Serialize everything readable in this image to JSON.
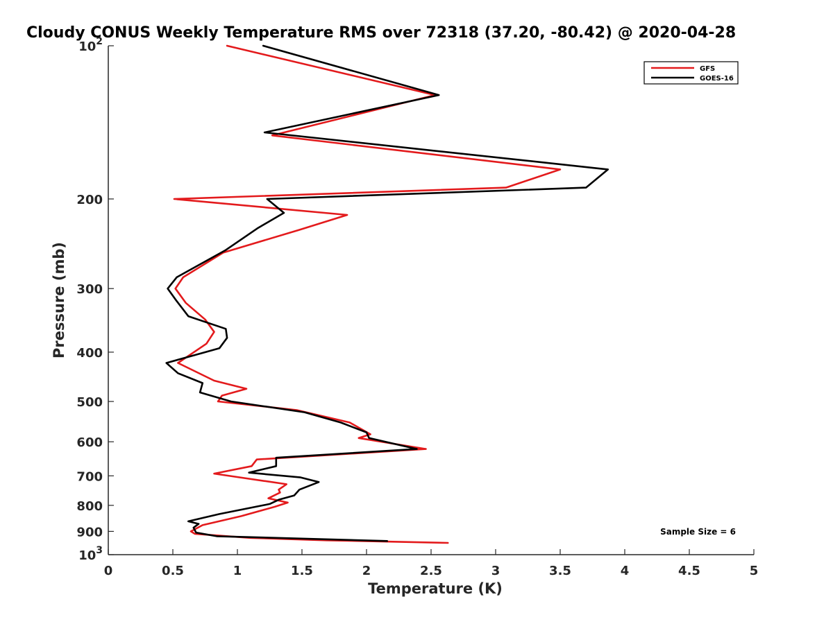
{
  "chart_data": {
    "type": "line",
    "title": "Cloudy CONUS Weekly Temperature RMS over 72318 (37.20, -80.42) @ 2020-04-28",
    "xlabel": "Temperature (K)",
    "ylabel": "Pressure (mb)",
    "xlim": [
      0,
      5
    ],
    "ylim": [
      100,
      1000
    ],
    "yscale": "log",
    "y_reversed": true,
    "grid": false,
    "x_ticks": [
      0,
      0.5,
      1,
      1.5,
      2,
      2.5,
      3,
      3.5,
      4,
      4.5,
      5
    ],
    "x_tick_labels": [
      "0",
      "0.5",
      "1",
      "1.5",
      "2",
      "2.5",
      "3",
      "3.5",
      "4",
      "4.5",
      "5"
    ],
    "y_ticks": [
      100,
      200,
      300,
      400,
      500,
      600,
      700,
      800,
      900,
      1000
    ],
    "y_tick_labels": [
      {
        "base": "10",
        "exp": "2"
      },
      {
        "base": "200",
        "exp": ""
      },
      {
        "base": "300",
        "exp": ""
      },
      {
        "base": "400",
        "exp": ""
      },
      {
        "base": "500",
        "exp": ""
      },
      {
        "base": "600",
        "exp": ""
      },
      {
        "base": "700",
        "exp": ""
      },
      {
        "base": "800",
        "exp": ""
      },
      {
        "base": "900",
        "exp": ""
      },
      {
        "base": "10",
        "exp": "3"
      }
    ],
    "legend_position": "top-right",
    "annotation": "Sample Size = 6",
    "series": [
      {
        "name": "GFS",
        "color": "#e31a1c",
        "points": [
          [
            0.92,
            100
          ],
          [
            2.53,
            125
          ],
          [
            1.27,
            150
          ],
          [
            3.5,
            175
          ],
          [
            3.08,
            190
          ],
          [
            0.51,
            200
          ],
          [
            1.85,
            215
          ],
          [
            1.48,
            230
          ],
          [
            0.89,
            255
          ],
          [
            0.58,
            285
          ],
          [
            0.52,
            300
          ],
          [
            0.6,
            320
          ],
          [
            0.75,
            345
          ],
          [
            0.82,
            365
          ],
          [
            0.76,
            385
          ],
          [
            0.54,
            420
          ],
          [
            0.82,
            455
          ],
          [
            1.07,
            472
          ],
          [
            0.88,
            487
          ],
          [
            0.85,
            500
          ],
          [
            1.46,
            520
          ],
          [
            1.87,
            550
          ],
          [
            2.03,
            580
          ],
          [
            1.94,
            590
          ],
          [
            2.46,
            620
          ],
          [
            1.15,
            650
          ],
          [
            1.11,
            670
          ],
          [
            0.82,
            693
          ],
          [
            1.38,
            727
          ],
          [
            1.32,
            745
          ],
          [
            1.33,
            755
          ],
          [
            1.24,
            775
          ],
          [
            1.39,
            790
          ],
          [
            1.29,
            805
          ],
          [
            1.03,
            840
          ],
          [
            0.73,
            875
          ],
          [
            0.64,
            900
          ],
          [
            0.67,
            910
          ],
          [
            1.1,
            927
          ],
          [
            1.69,
            937
          ],
          [
            2.63,
            948
          ]
        ]
      },
      {
        "name": "GOES-16",
        "color": "#000000",
        "points": [
          [
            1.2,
            100
          ],
          [
            2.56,
            125
          ],
          [
            1.21,
            148
          ],
          [
            3.87,
            175
          ],
          [
            3.7,
            190
          ],
          [
            1.23,
            200
          ],
          [
            1.36,
            213
          ],
          [
            1.16,
            228
          ],
          [
            0.91,
            252
          ],
          [
            0.53,
            285
          ],
          [
            0.46,
            300
          ],
          [
            0.52,
            315
          ],
          [
            0.62,
            340
          ],
          [
            0.91,
            360
          ],
          [
            0.92,
            375
          ],
          [
            0.86,
            393
          ],
          [
            0.45,
            420
          ],
          [
            0.54,
            440
          ],
          [
            0.73,
            460
          ],
          [
            0.71,
            480
          ],
          [
            0.95,
            500
          ],
          [
            1.52,
            525
          ],
          [
            1.8,
            550
          ],
          [
            2.0,
            575
          ],
          [
            2.02,
            590
          ],
          [
            2.39,
            620
          ],
          [
            1.3,
            645
          ],
          [
            1.3,
            670
          ],
          [
            1.09,
            690
          ],
          [
            1.49,
            705
          ],
          [
            1.63,
            720
          ],
          [
            1.48,
            745
          ],
          [
            1.44,
            765
          ],
          [
            1.32,
            780
          ],
          [
            1.25,
            795
          ],
          [
            0.86,
            832
          ],
          [
            0.62,
            860
          ],
          [
            0.7,
            870
          ],
          [
            0.66,
            885
          ],
          [
            0.68,
            905
          ],
          [
            0.84,
            920
          ],
          [
            2.16,
            940
          ]
        ]
      }
    ]
  }
}
